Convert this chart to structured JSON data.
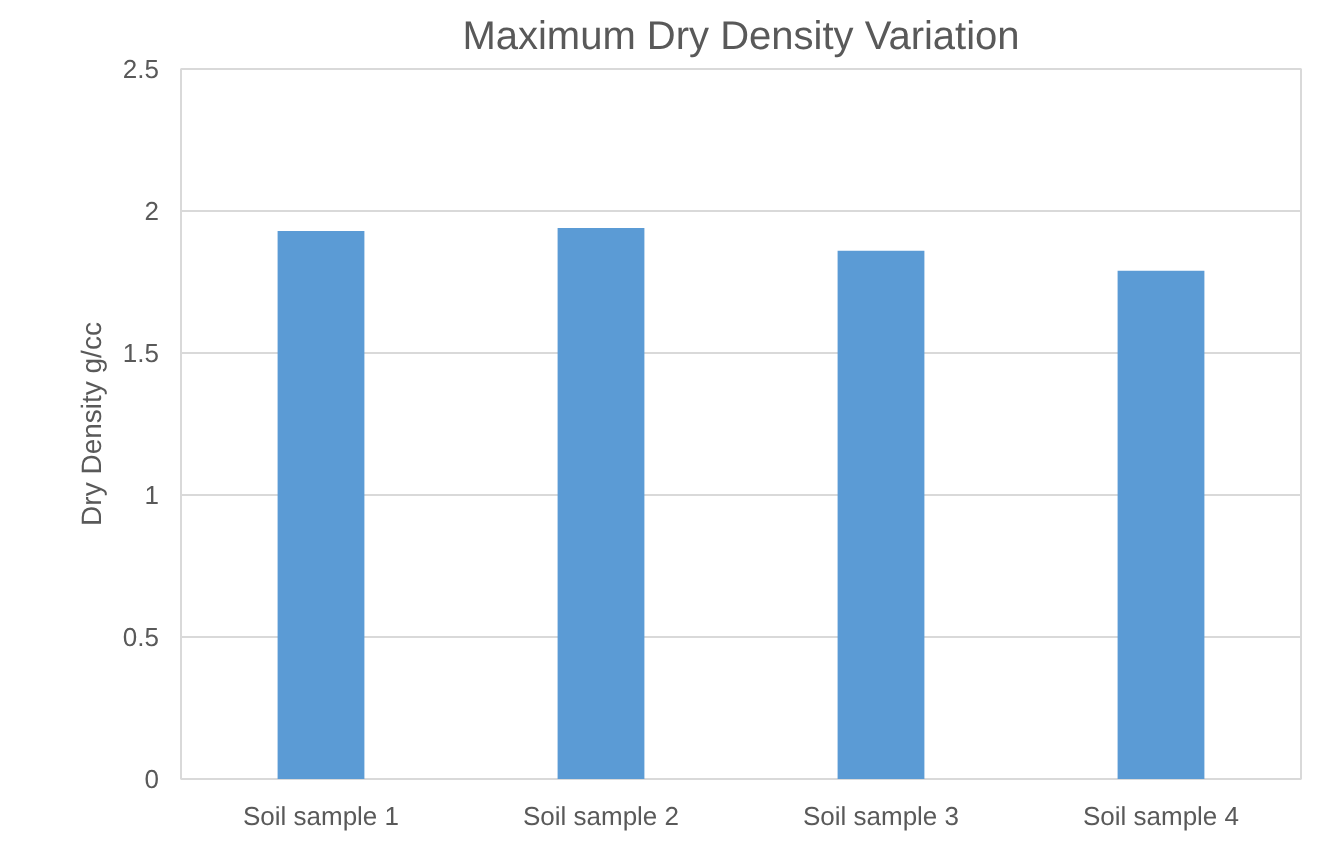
{
  "chart_data": {
    "type": "bar",
    "title": "Maximum Dry Density Variation",
    "ylabel": "Dry Density g/cc",
    "categories": [
      "Soil sample 1",
      "Soil sample 2",
      "Soil sample 3",
      "Soil sample 4"
    ],
    "values": [
      1.93,
      1.94,
      1.86,
      1.79
    ],
    "color": "#5b9bd5",
    "ylim": [
      0,
      2.5
    ],
    "yticks": [
      0,
      0.5,
      1,
      1.5,
      2,
      2.5
    ],
    "grid": "y"
  }
}
